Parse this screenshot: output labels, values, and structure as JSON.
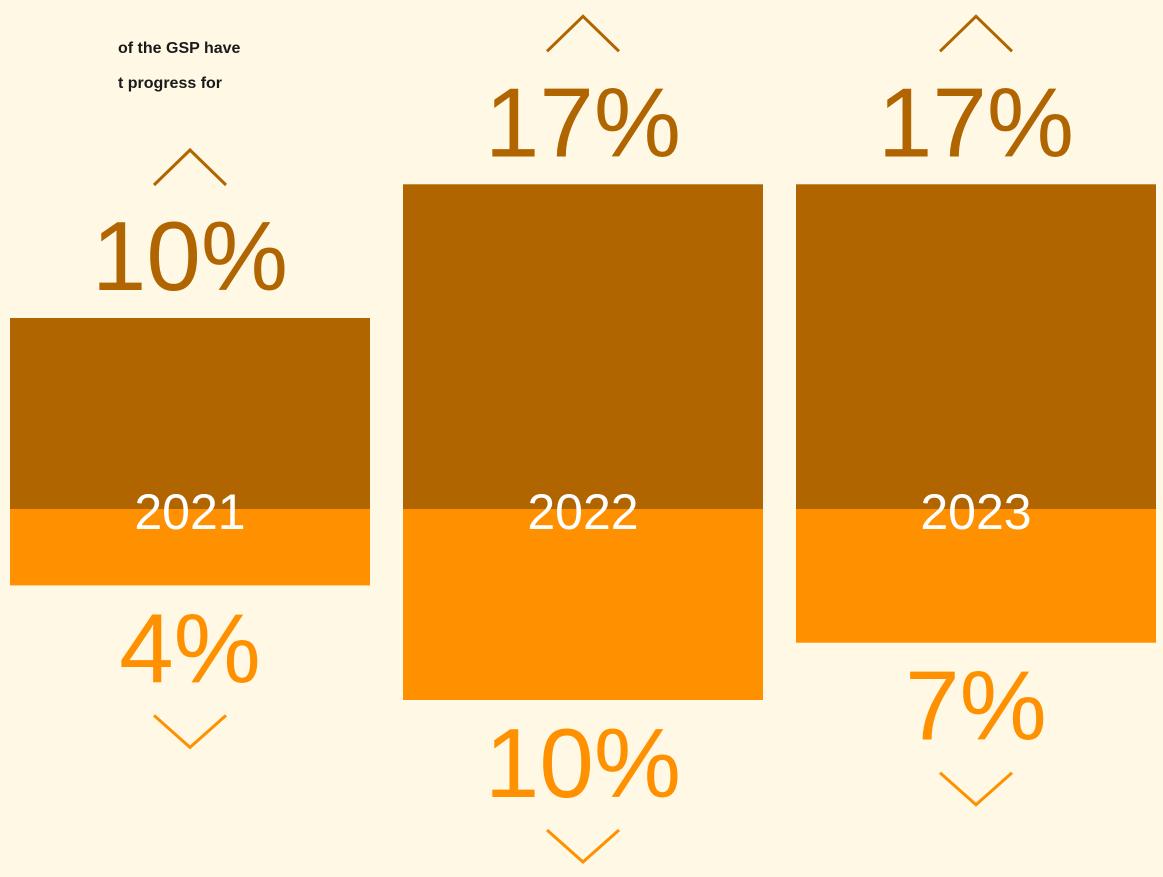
{
  "chart_data": {
    "type": "diverging_bar",
    "annotation": [
      "of the GSP have",
      "t progress for"
    ],
    "categories": [
      "2021",
      "2022",
      "2023"
    ],
    "series": [
      {
        "color": "#b06500",
        "values": [
          10,
          17,
          17
        ],
        "value_labels": [
          "10%",
          "17%",
          "17%"
        ]
      },
      {
        "color": "#ff9000",
        "values": [
          4,
          10,
          7
        ],
        "value_labels": [
          "4%",
          "10%",
          "7%"
        ]
      }
    ]
  }
}
